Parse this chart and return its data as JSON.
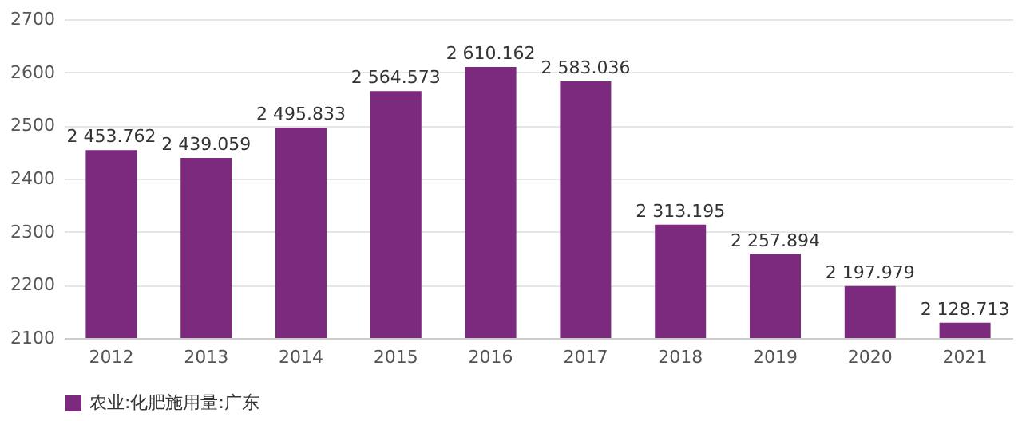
{
  "chart_data": {
    "type": "bar",
    "categories": [
      "2012",
      "2013",
      "2014",
      "2015",
      "2016",
      "2017",
      "2018",
      "2019",
      "2020",
      "2021"
    ],
    "series": [
      {
        "name": "农业:化肥施用量:广东",
        "color": "#7b2a7e",
        "values": [
          2453.762,
          2439.059,
          2495.833,
          2564.573,
          2610.162,
          2583.036,
          2313.195,
          2257.894,
          2197.979,
          2128.713
        ],
        "value_labels": [
          "2 453.762",
          "2 439.059",
          "2 495.833",
          "2 564.573",
          "2 610.162",
          "2 583.036",
          "2 313.195",
          "2 257.894",
          "2 197.979",
          "2 128.713"
        ]
      }
    ],
    "ylim": [
      2100,
      2700
    ],
    "yticks": [
      2100,
      2200,
      2300,
      2400,
      2500,
      2600,
      2700
    ],
    "grid": "y",
    "legend": "bottom"
  }
}
